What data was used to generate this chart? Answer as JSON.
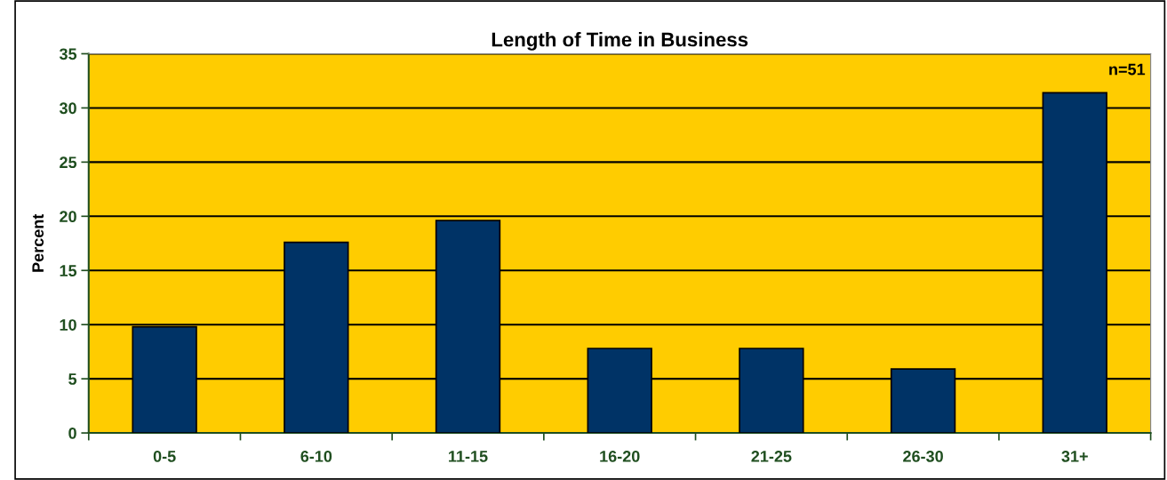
{
  "chart_data": {
    "type": "bar",
    "title": "Length of Time in Business",
    "ylabel": "Percent",
    "categories": [
      "0-5",
      "6-10",
      "11-15",
      "16-20",
      "21-25",
      "26-30",
      "31+"
    ],
    "values": [
      9.8,
      17.6,
      19.6,
      7.8,
      7.8,
      5.9,
      31.4
    ],
    "color": "#003366",
    "ylim": [
      0,
      35
    ],
    "yticks": [
      0,
      5,
      10,
      15,
      20,
      25,
      30,
      35
    ],
    "grid": "y",
    "legend": false,
    "annotations": [
      "n=51"
    ]
  }
}
